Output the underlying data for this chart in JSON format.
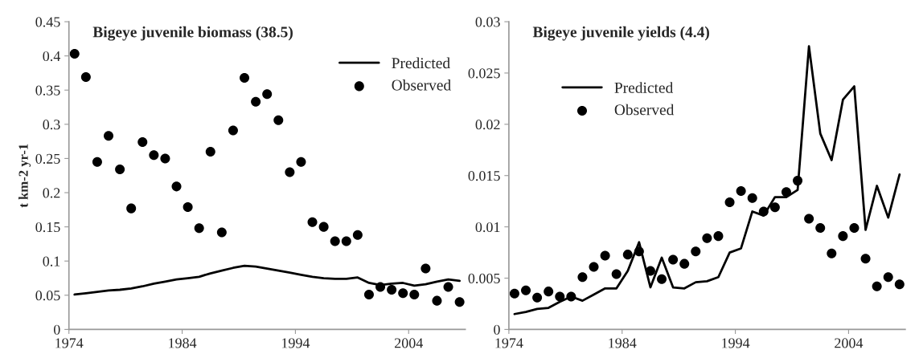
{
  "chart_data": [
    {
      "type": "line",
      "title": "Bigeye juvenile biomass (38.5)",
      "ylabel": "t km-2 yr-1",
      "x": [
        1974,
        1975,
        1976,
        1977,
        1978,
        1979,
        1980,
        1981,
        1982,
        1983,
        1984,
        1985,
        1986,
        1987,
        1988,
        1989,
        1990,
        1991,
        1992,
        1993,
        1994,
        1995,
        1996,
        1997,
        1998,
        1999,
        2000,
        2001,
        2002,
        2003,
        2004,
        2005,
        2006,
        2007,
        2008
      ],
      "series": [
        {
          "name": "Predicted",
          "color": "#000000",
          "values": [
            0.051,
            0.053,
            0.055,
            0.057,
            0.058,
            0.06,
            0.063,
            0.067,
            0.07,
            0.073,
            0.075,
            0.077,
            0.082,
            0.086,
            0.09,
            0.093,
            0.092,
            0.089,
            0.086,
            0.083,
            0.08,
            0.077,
            0.075,
            0.074,
            0.074,
            0.076,
            0.068,
            0.065,
            0.067,
            0.068,
            0.064,
            0.066,
            0.07,
            0.073,
            0.071
          ]
        },
        {
          "name": "Observed",
          "type": "scatter",
          "color": "#000000",
          "values": [
            0.403,
            0.369,
            0.245,
            0.283,
            0.234,
            0.177,
            0.274,
            0.255,
            0.25,
            0.209,
            0.179,
            0.148,
            0.26,
            0.142,
            0.291,
            0.368,
            0.333,
            0.344,
            0.306,
            0.23,
            0.245,
            0.157,
            0.15,
            0.129,
            0.129,
            0.138,
            0.051,
            0.062,
            0.058,
            0.053,
            0.051,
            0.089,
            0.042,
            0.062,
            0.04
          ]
        }
      ],
      "xlim": [
        1973.5,
        2008.5
      ],
      "xticks": [
        {
          "value": 1973.5,
          "label": "1974"
        },
        {
          "value": 1983.5,
          "label": "1984"
        },
        {
          "value": 1993.5,
          "label": "1994"
        },
        {
          "value": 2003.5,
          "label": "2004"
        }
      ],
      "ylim": [
        0,
        0.45
      ],
      "yticks": [
        0,
        0.05,
        0.1,
        0.15,
        0.2,
        0.25,
        0.3,
        0.35,
        0.4,
        0.45
      ],
      "grid": false,
      "legend": "top right"
    },
    {
      "type": "line",
      "title": "Bigeye juvenile yields (4.4)",
      "x": [
        1974,
        1975,
        1976,
        1977,
        1978,
        1979,
        1980,
        1981,
        1982,
        1983,
        1984,
        1985,
        1986,
        1987,
        1988,
        1989,
        1990,
        1991,
        1992,
        1993,
        1994,
        1995,
        1996,
        1997,
        1998,
        1999,
        2000,
        2001,
        2002,
        2003,
        2004,
        2005,
        2006,
        2007,
        2008
      ],
      "series": [
        {
          "name": "Predicted",
          "color": "#000000",
          "values": [
            0.0015,
            0.0017,
            0.002,
            0.0021,
            0.0027,
            0.0032,
            0.0028,
            0.0034,
            0.004,
            0.004,
            0.0057,
            0.0085,
            0.0041,
            0.007,
            0.0041,
            0.004,
            0.0046,
            0.0047,
            0.0051,
            0.0075,
            0.0079,
            0.0115,
            0.0111,
            0.0129,
            0.0129,
            0.0136,
            0.0276,
            0.0191,
            0.0165,
            0.0224,
            0.0237,
            0.0097,
            0.014,
            0.0109,
            0.0151
          ]
        },
        {
          "name": "Observed",
          "type": "scatter",
          "color": "#000000",
          "values": [
            0.0035,
            0.0038,
            0.0031,
            0.0037,
            0.0032,
            0.0032,
            0.0051,
            0.0061,
            0.0072,
            0.0054,
            0.0073,
            0.0076,
            0.0057,
            0.0049,
            0.0068,
            0.0064,
            0.0076,
            0.0089,
            0.0091,
            0.0124,
            0.0135,
            0.0128,
            0.0115,
            0.0119,
            0.0134,
            0.0145,
            0.0108,
            0.0099,
            0.0074,
            0.0091,
            0.0099,
            0.0069,
            0.0042,
            0.0051,
            0.0044
          ]
        }
      ],
      "xlim": [
        1973.5,
        2008.5
      ],
      "xticks": [
        {
          "value": 1973.5,
          "label": "1974"
        },
        {
          "value": 1983.5,
          "label": "1984"
        },
        {
          "value": 1993.5,
          "label": "1994"
        },
        {
          "value": 2003.5,
          "label": "2004"
        }
      ],
      "ylim": [
        0,
        0.03
      ],
      "yticks": [
        0,
        0.005,
        0.01,
        0.015,
        0.02,
        0.025,
        0.03
      ],
      "grid": false,
      "legend": "top left"
    }
  ]
}
